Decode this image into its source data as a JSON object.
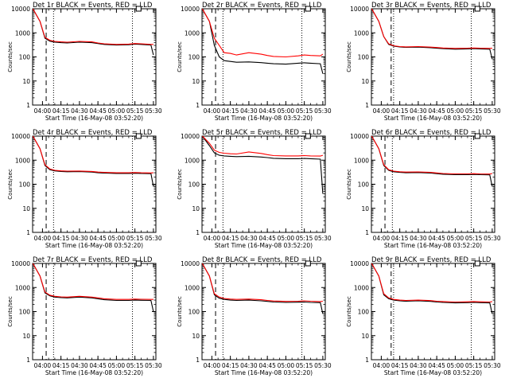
{
  "chart_data": [
    {
      "type": "line",
      "title": "Det 1r BLACK = Events, RED = LLD",
      "xlabel": "Start Time (16-May-08 03:52:20)",
      "ylabel": "Counts/sec",
      "x_ticks": [
        "04:00",
        "04:15",
        "04:30",
        "04:45",
        "05:00",
        "05:15",
        "05:30"
      ],
      "y_ticks": [
        "1",
        "10",
        "100",
        "1000",
        "10000"
      ],
      "ylim": [
        1,
        10000
      ],
      "y_scale": "log",
      "x": [
        "03:52",
        "03:58",
        "04:02",
        "04:06",
        "04:10",
        "04:15",
        "04:20",
        "04:30",
        "04:40",
        "04:45",
        "04:50",
        "05:00",
        "05:10",
        "05:15",
        "05:20",
        "05:28",
        "05:30"
      ],
      "series": [
        {
          "color": "#000000",
          "values": [
            12000,
            3000,
            600,
            450,
            410,
            390,
            380,
            410,
            390,
            360,
            330,
            310,
            320,
            340,
            330,
            310,
            120
          ]
        },
        {
          "color": "#ff0000",
          "values": [
            12000,
            3000,
            650,
            490,
            440,
            420,
            410,
            440,
            420,
            380,
            350,
            330,
            340,
            360,
            350,
            330,
            330
          ]
        }
      ],
      "annotations": {
        "dashed_line_x": "04:03",
        "dotted_lines_x": [
          "04:09",
          "05:13"
        ],
        "marker_x": "05:18"
      }
    },
    {
      "type": "line",
      "title": "Det 2r BLACK = Events, RED = LLD",
      "xlabel": "Start Time (16-May-08 03:52:20)",
      "ylabel": "Counts/sec",
      "x_ticks": [
        "04:00",
        "04:15",
        "04:30",
        "04:45",
        "05:00",
        "05:15",
        "05:30"
      ],
      "y_ticks": [
        "1",
        "10",
        "100",
        "1000",
        "10000"
      ],
      "ylim": [
        1,
        10000
      ],
      "y_scale": "log",
      "x": [
        "03:52",
        "03:58",
        "04:02",
        "04:06",
        "04:10",
        "04:15",
        "04:20",
        "04:30",
        "04:40",
        "04:45",
        "04:50",
        "05:00",
        "05:10",
        "05:15",
        "05:20",
        "05:28",
        "05:30"
      ],
      "series": [
        {
          "color": "#000000",
          "values": [
            12000,
            3000,
            300,
            100,
            70,
            65,
            60,
            62,
            58,
            55,
            52,
            50,
            55,
            57,
            55,
            52,
            20
          ]
        },
        {
          "color": "#ff0000",
          "values": [
            12000,
            3000,
            600,
            300,
            150,
            140,
            120,
            150,
            130,
            115,
            105,
            100,
            110,
            120,
            115,
            110,
            130
          ]
        }
      ],
      "annotations": {
        "dashed_line_x": "04:03",
        "dotted_lines_x": [
          "04:09",
          "05:13"
        ],
        "marker_x": "05:18"
      }
    },
    {
      "type": "line",
      "title": "Det 3r BLACK = Events, RED = LLD",
      "xlabel": "Start Time (16-May-08 03:52:20)",
      "ylabel": "Counts/sec",
      "x_ticks": [
        "04:00",
        "04:15",
        "04:30",
        "04:45",
        "05:00",
        "05:15",
        "05:30"
      ],
      "y_ticks": [
        "1",
        "10",
        "100",
        "1000",
        "10000"
      ],
      "ylim": [
        1,
        10000
      ],
      "y_scale": "log",
      "x": [
        "03:52",
        "03:58",
        "04:02",
        "04:06",
        "04:10",
        "04:15",
        "04:20",
        "04:30",
        "04:40",
        "04:45",
        "04:50",
        "05:00",
        "05:10",
        "05:15",
        "05:20",
        "05:28",
        "05:30"
      ],
      "series": [
        {
          "color": "#000000",
          "values": [
            12000,
            3000,
            700,
            330,
            280,
            260,
            250,
            255,
            240,
            230,
            220,
            210,
            215,
            220,
            215,
            210,
            80
          ]
        },
        {
          "color": "#ff0000",
          "values": [
            12000,
            3000,
            700,
            350,
            290,
            270,
            260,
            270,
            255,
            245,
            235,
            225,
            230,
            235,
            230,
            225,
            230
          ]
        }
      ],
      "annotations": {
        "dashed_line_x": "04:08",
        "dotted_lines_x": [
          "04:10",
          "05:13"
        ],
        "marker_x": "05:18"
      }
    },
    {
      "type": "line",
      "title": "Det 4r BLACK = Events, RED = LLD",
      "xlabel": "Start Time (16-May-08 03:52:20)",
      "ylabel": "Counts/sec",
      "x_ticks": [
        "04:00",
        "04:15",
        "04:30",
        "04:45",
        "05:00",
        "05:15",
        "05:30"
      ],
      "y_ticks": [
        "1",
        "10",
        "100",
        "1000",
        "10000"
      ],
      "ylim": [
        1,
        10000
      ],
      "y_scale": "log",
      "x": [
        "03:52",
        "03:58",
        "04:02",
        "04:06",
        "04:10",
        "04:15",
        "04:20",
        "04:30",
        "04:40",
        "04:45",
        "04:50",
        "05:00",
        "05:10",
        "05:15",
        "05:20",
        "05:28",
        "05:30"
      ],
      "series": [
        {
          "color": "#000000",
          "values": [
            12000,
            3000,
            600,
            400,
            360,
            340,
            330,
            335,
            320,
            300,
            290,
            280,
            280,
            285,
            280,
            275,
            80
          ]
        },
        {
          "color": "#ff0000",
          "values": [
            12000,
            3000,
            650,
            430,
            380,
            360,
            350,
            355,
            340,
            320,
            310,
            300,
            300,
            305,
            300,
            295,
            300
          ]
        }
      ],
      "annotations": {
        "dashed_line_x": "04:03",
        "dotted_lines_x": [
          "04:09",
          "05:13"
        ],
        "marker_x": "05:18"
      }
    },
    {
      "type": "line",
      "title": "Det 5r BLACK = Events, RED = LLD",
      "xlabel": "Start Time (16-May-08 03:52:20)",
      "ylabel": "Counts/sec",
      "x_ticks": [
        "04:00",
        "04:15",
        "04:30",
        "04:45",
        "05:00",
        "05:15",
        "05:30"
      ],
      "y_ticks": [
        "1",
        "10",
        "100",
        "1000",
        "10000"
      ],
      "ylim": [
        1,
        10000
      ],
      "y_scale": "log",
      "x": [
        "03:52",
        "03:58",
        "04:02",
        "04:06",
        "04:10",
        "04:15",
        "04:20",
        "04:30",
        "04:40",
        "04:45",
        "04:50",
        "05:00",
        "05:10",
        "05:15",
        "05:20",
        "05:28",
        "05:30"
      ],
      "series": [
        {
          "color": "#000000",
          "values": [
            12000,
            4000,
            2000,
            1600,
            1500,
            1450,
            1400,
            1450,
            1350,
            1280,
            1200,
            1150,
            1150,
            1180,
            1150,
            1100,
            40
          ]
        },
        {
          "color": "#ff0000",
          "values": [
            12000,
            5000,
            2600,
            2100,
            1950,
            1850,
            1800,
            2200,
            1900,
            1700,
            1550,
            1500,
            1500,
            1550,
            1500,
            1480,
            1600
          ]
        }
      ],
      "annotations": {
        "dashed_line_x": "04:03",
        "dotted_lines_x": [
          "04:09",
          "05:13"
        ],
        "marker_x": "05:18"
      }
    },
    {
      "type": "line",
      "title": "Det 6r BLACK = Events, RED = LLD",
      "xlabel": "Start Time (16-May-08 03:52:20)",
      "ylabel": "Counts/sec",
      "x_ticks": [
        "04:00",
        "04:15",
        "04:30",
        "04:45",
        "05:00",
        "05:15",
        "05:30"
      ],
      "y_ticks": [
        "1",
        "10",
        "100",
        "1000",
        "10000"
      ],
      "ylim": [
        1,
        10000
      ],
      "y_scale": "log",
      "x": [
        "03:52",
        "03:58",
        "04:02",
        "04:06",
        "04:10",
        "04:15",
        "04:20",
        "04:30",
        "04:40",
        "04:45",
        "04:50",
        "05:00",
        "05:10",
        "05:15",
        "05:20",
        "05:28",
        "05:30"
      ],
      "series": [
        {
          "color": "#000000",
          "values": [
            12000,
            3000,
            600,
            380,
            330,
            310,
            300,
            305,
            290,
            275,
            260,
            250,
            250,
            255,
            250,
            245,
            80
          ]
        },
        {
          "color": "#ff0000",
          "values": [
            12000,
            3000,
            650,
            400,
            350,
            330,
            320,
            325,
            310,
            295,
            280,
            270,
            270,
            275,
            270,
            265,
            280
          ]
        }
      ],
      "annotations": {
        "dashed_line_x": "04:03",
        "dotted_lines_x": [
          "04:09",
          "05:13"
        ],
        "marker_x": "05:18"
      }
    },
    {
      "type": "line",
      "title": "Det 7r BLACK = Events, RED = LLD",
      "xlabel": "Start Time (16-May-08 03:52:20)",
      "ylabel": "Counts/sec",
      "x_ticks": [
        "04:00",
        "04:15",
        "04:30",
        "04:45",
        "05:00",
        "05:15",
        "05:30"
      ],
      "y_ticks": [
        "1",
        "10",
        "100",
        "1000",
        "10000"
      ],
      "ylim": [
        1,
        10000
      ],
      "y_scale": "log",
      "x": [
        "03:52",
        "03:58",
        "04:02",
        "04:06",
        "04:10",
        "04:15",
        "04:20",
        "04:30",
        "04:40",
        "04:45",
        "04:50",
        "05:00",
        "05:10",
        "05:15",
        "05:20",
        "05:28",
        "05:30"
      ],
      "series": [
        {
          "color": "#000000",
          "values": [
            12000,
            3000,
            600,
            450,
            400,
            380,
            370,
            400,
            370,
            340,
            310,
            290,
            290,
            300,
            295,
            290,
            100
          ]
        },
        {
          "color": "#ff0000",
          "values": [
            12000,
            3000,
            650,
            480,
            430,
            410,
            400,
            430,
            400,
            370,
            340,
            320,
            320,
            330,
            325,
            320,
            320
          ]
        }
      ],
      "annotations": {
        "dashed_line_x": "04:03",
        "dotted_lines_x": [
          "04:09",
          "05:13"
        ],
        "marker_x": "05:18"
      }
    },
    {
      "type": "line",
      "title": "Det 8r BLACK = Events, RED = LLD",
      "xlabel": "Start Time (16-May-08 03:52:20)",
      "ylabel": "Counts/sec",
      "x_ticks": [
        "04:00",
        "04:15",
        "04:30",
        "04:45",
        "05:00",
        "05:15",
        "05:30"
      ],
      "y_ticks": [
        "1",
        "10",
        "100",
        "1000",
        "10000"
      ],
      "ylim": [
        1,
        10000
      ],
      "y_scale": "log",
      "x": [
        "03:52",
        "03:58",
        "04:02",
        "04:06",
        "04:10",
        "04:15",
        "04:20",
        "04:30",
        "04:40",
        "04:45",
        "04:50",
        "05:00",
        "05:10",
        "05:15",
        "05:20",
        "05:28",
        "05:30"
      ],
      "series": [
        {
          "color": "#000000",
          "values": [
            12000,
            3000,
            500,
            360,
            320,
            300,
            290,
            300,
            280,
            265,
            250,
            240,
            245,
            250,
            240,
            235,
            80
          ]
        },
        {
          "color": "#ff0000",
          "values": [
            12000,
            3000,
            550,
            400,
            350,
            330,
            320,
            330,
            310,
            290,
            275,
            265,
            270,
            280,
            270,
            260,
            270
          ]
        }
      ],
      "annotations": {
        "dashed_line_x": "04:03",
        "dotted_lines_x": [
          "04:09",
          "05:13"
        ],
        "marker_x": "05:18"
      }
    },
    {
      "type": "line",
      "title": "Det 9r BLACK = Events, RED = LLD",
      "xlabel": "Start Time (16-May-08 03:52:20)",
      "ylabel": "Counts/sec",
      "x_ticks": [
        "04:00",
        "04:15",
        "04:30",
        "04:45",
        "05:00",
        "05:15",
        "05:30"
      ],
      "y_ticks": [
        "1",
        "10",
        "100",
        "1000",
        "10000"
      ],
      "ylim": [
        1,
        10000
      ],
      "y_scale": "log",
      "x": [
        "03:52",
        "03:58",
        "04:02",
        "04:06",
        "04:10",
        "04:15",
        "04:20",
        "04:30",
        "04:40",
        "04:45",
        "04:50",
        "05:00",
        "05:10",
        "05:15",
        "05:20",
        "05:28",
        "05:30"
      ],
      "series": [
        {
          "color": "#000000",
          "values": [
            12000,
            3000,
            500,
            340,
            300,
            280,
            270,
            280,
            265,
            250,
            240,
            230,
            235,
            240,
            235,
            230,
            80
          ]
        },
        {
          "color": "#ff0000",
          "values": [
            12000,
            3000,
            550,
            370,
            320,
            300,
            290,
            300,
            285,
            270,
            260,
            250,
            255,
            260,
            255,
            250,
            260
          ]
        }
      ],
      "annotations": {
        "dashed_line_x": "04:08",
        "dotted_lines_x": [
          "04:10",
          "05:13"
        ],
        "marker_x": "05:18"
      }
    }
  ]
}
